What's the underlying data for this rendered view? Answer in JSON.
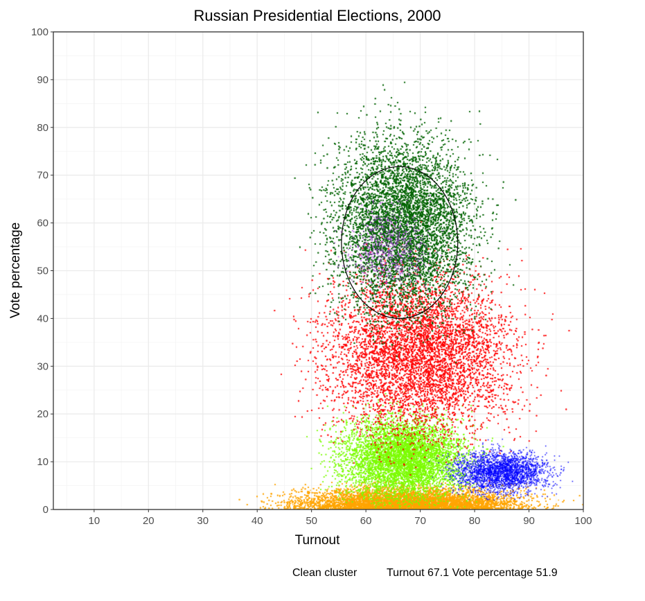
{
  "chart_data": {
    "type": "scatter",
    "title": "Russian Presidential Elections, 2000",
    "xlabel": "Turnout",
    "ylabel": "Vote percentage",
    "xlim": [
      2.5,
      100
    ],
    "ylim": [
      0,
      100
    ],
    "x_ticks": [
      10,
      20,
      30,
      40,
      50,
      60,
      70,
      80,
      90,
      100
    ],
    "y_ticks": [
      0,
      10,
      20,
      30,
      40,
      50,
      60,
      70,
      80,
      90,
      100
    ],
    "grid": true,
    "legend": "none",
    "series": [
      {
        "color": "#006400",
        "cluster_center": [
          67,
          60
        ],
        "spread": [
          9,
          13
        ]
      },
      {
        "color": "#ff0000",
        "cluster_center": [
          70,
          33
        ],
        "spread": [
          12,
          12
        ]
      },
      {
        "color": "#7cfc00",
        "cluster_center": [
          67,
          11
        ],
        "spread": [
          8,
          6
        ]
      },
      {
        "color": "#ffa500",
        "cluster_center": [
          68,
          3
        ],
        "spread": [
          14,
          2.5
        ]
      },
      {
        "color": "#0000ff",
        "cluster_center": [
          85,
          8
        ],
        "spread": [
          6,
          3
        ]
      },
      {
        "color": "#9932cc",
        "cluster_center": [
          64,
          55
        ],
        "spread": [
          5,
          6
        ]
      }
    ],
    "annotations": {
      "ellipse": {
        "center": [
          66.2,
          55.9
        ],
        "semi_axis_x": 10.7,
        "semi_axis_y": 15.9,
        "color": "#000000"
      }
    }
  },
  "footer": {
    "label": "Clean cluster",
    "values": "Turnout 67.1  Vote percentage 51.9"
  }
}
